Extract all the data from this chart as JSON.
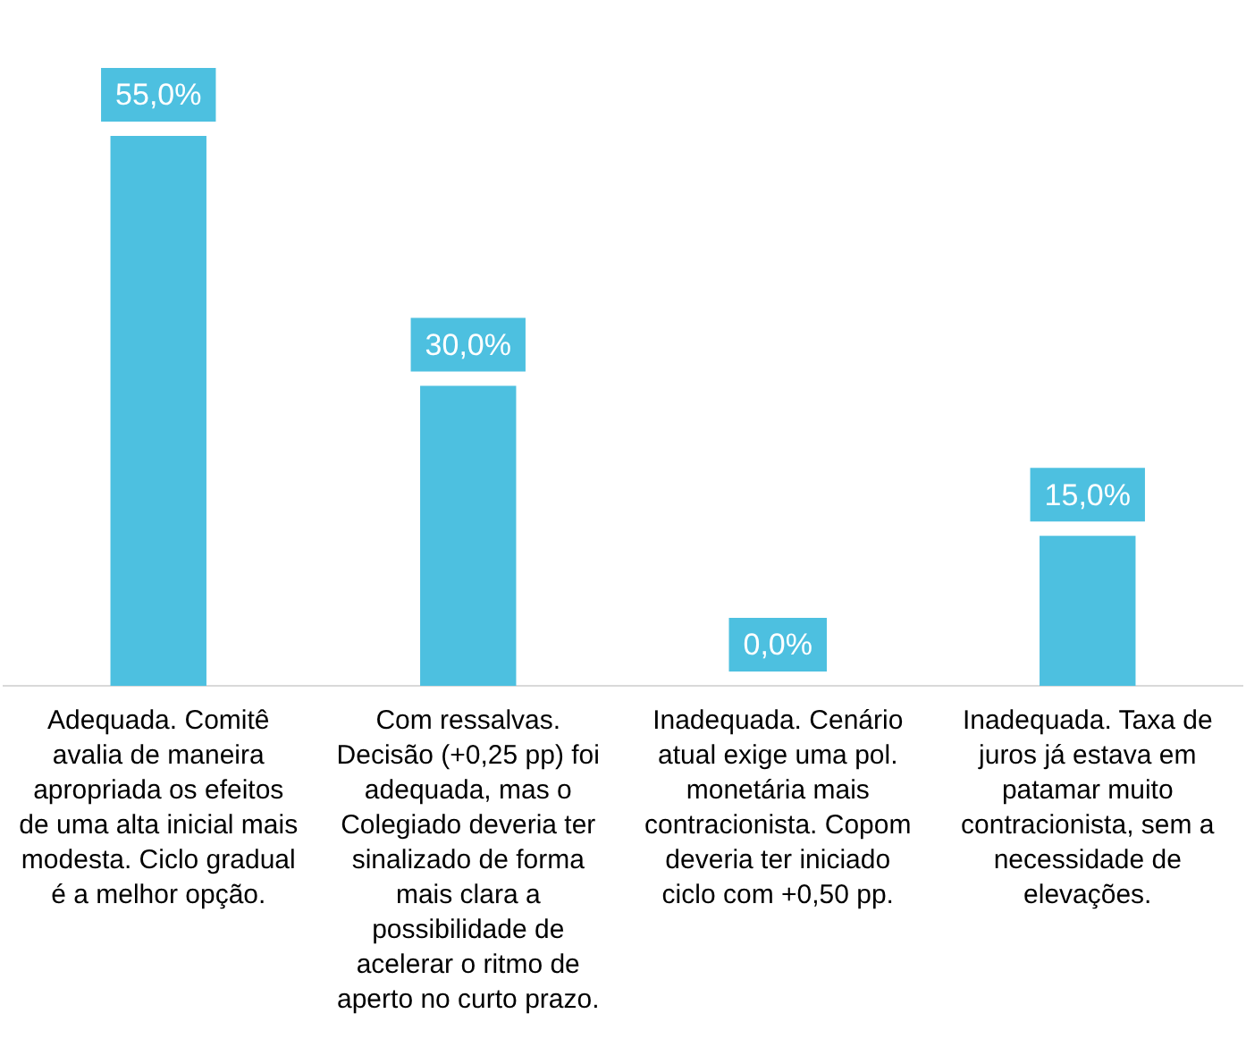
{
  "chart_data": {
    "type": "bar",
    "categories": [
      "Adequada. Comitê avalia de maneira apropriada os efeitos de uma alta inicial mais modesta. Ciclo gradual é a melhor opção.",
      "Com ressalvas. Decisão (+0,25 pp) foi adequada, mas o Colegiado deveria ter sinalizado de forma mais clara a possibilidade de acelerar o ritmo de aperto no curto prazo.",
      "Inadequada. Cenário atual exige uma pol. monetária mais contracionista. Copom deveria ter iniciado ciclo com +0,50 pp.",
      "Inadequada. Taxa de juros já estava em patamar muito contracionista, sem a necessidade de elevações."
    ],
    "values": [
      55,
      30,
      0,
      15
    ],
    "value_labels": [
      "55,0%",
      "30,0%",
      "0,0%",
      "15,0%"
    ],
    "color": "#4dc0e0",
    "grid": false,
    "legend": false
  }
}
